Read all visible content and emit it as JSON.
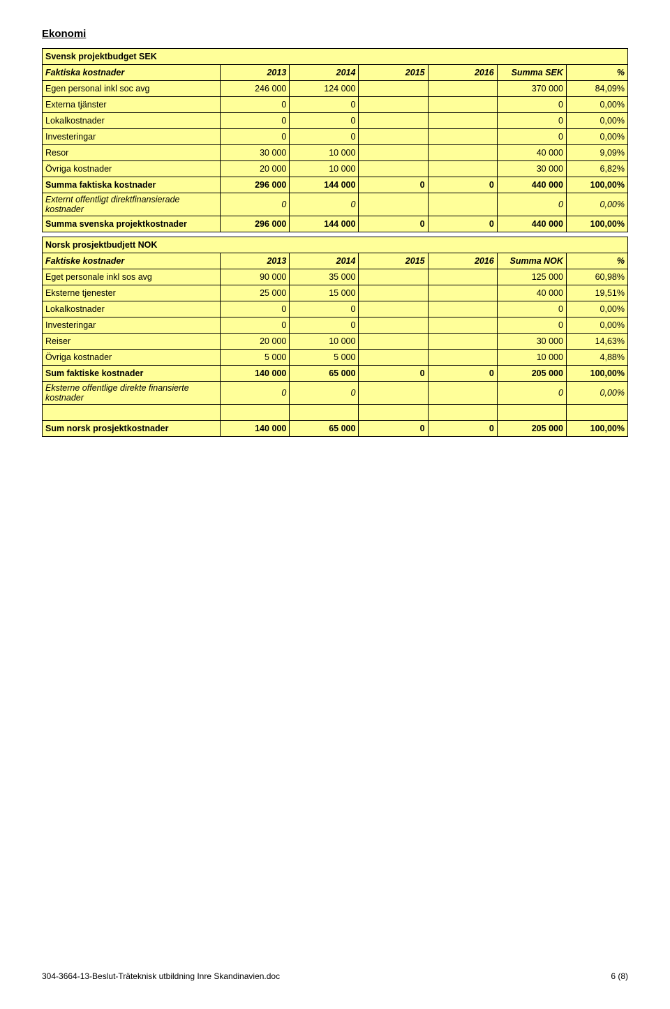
{
  "title": "Ekonomi",
  "table1": {
    "header_row": {
      "label": "Svensk projektbudget SEK"
    },
    "columns_row": {
      "label": "Faktiska kostnader",
      "c2013": "2013",
      "c2014": "2014",
      "c2015": "2015",
      "c2016": "2016",
      "sum": "Summa SEK",
      "pct": "%"
    },
    "rows": [
      {
        "label": "Egen personal inkl soc avg",
        "c2013": "246 000",
        "c2014": "124 000",
        "c2015": "",
        "c2016": "",
        "sum": "370 000",
        "pct": "84,09%",
        "bold": false,
        "italic": false
      },
      {
        "label": "Externa tjänster",
        "c2013": "0",
        "c2014": "0",
        "c2015": "",
        "c2016": "",
        "sum": "0",
        "pct": "0,00%",
        "bold": false,
        "italic": false
      },
      {
        "label": "Lokalkostnader",
        "c2013": "0",
        "c2014": "0",
        "c2015": "",
        "c2016": "",
        "sum": "0",
        "pct": "0,00%",
        "bold": false,
        "italic": false
      },
      {
        "label": "Investeringar",
        "c2013": "0",
        "c2014": "0",
        "c2015": "",
        "c2016": "",
        "sum": "0",
        "pct": "0,00%",
        "bold": false,
        "italic": false
      },
      {
        "label": "Resor",
        "c2013": "30 000",
        "c2014": "10 000",
        "c2015": "",
        "c2016": "",
        "sum": "40 000",
        "pct": "9,09%",
        "bold": false,
        "italic": false
      },
      {
        "label": "Övriga kostnader",
        "c2013": "20 000",
        "c2014": "10 000",
        "c2015": "",
        "c2016": "",
        "sum": "30 000",
        "pct": "6,82%",
        "bold": false,
        "italic": false
      },
      {
        "label": "Summa faktiska kostnader",
        "c2013": "296 000",
        "c2014": "144 000",
        "c2015": "0",
        "c2016": "0",
        "sum": "440 000",
        "pct": "100,00%",
        "bold": true,
        "italic": false
      },
      {
        "label": "Externt offentligt direktfinansierade kostnader",
        "c2013": "0",
        "c2014": "0",
        "c2015": "",
        "c2016": "",
        "sum": "0",
        "pct": "0,00%",
        "bold": false,
        "italic": true
      },
      {
        "label": "Summa svenska projektkostnader",
        "c2013": "296 000",
        "c2014": "144 000",
        "c2015": "0",
        "c2016": "0",
        "sum": "440 000",
        "pct": "100,00%",
        "bold": true,
        "italic": false
      }
    ]
  },
  "table2": {
    "header_row": {
      "label": "Norsk prosjektbudjett NOK"
    },
    "columns_row": {
      "label": "Faktiske kostnader",
      "c2013": "2013",
      "c2014": "2014",
      "c2015": "2015",
      "c2016": "2016",
      "sum": "Summa NOK",
      "pct": "%"
    },
    "rows": [
      {
        "label": "Eget personale inkl sos avg",
        "c2013": "90 000",
        "c2014": "35 000",
        "c2015": "",
        "c2016": "",
        "sum": "125 000",
        "pct": "60,98%",
        "bold": false,
        "italic": false
      },
      {
        "label": "Eksterne tjenester",
        "c2013": "25 000",
        "c2014": "15 000",
        "c2015": "",
        "c2016": "",
        "sum": "40 000",
        "pct": "19,51%",
        "bold": false,
        "italic": false
      },
      {
        "label": "Lokalkostnader",
        "c2013": "0",
        "c2014": "0",
        "c2015": "",
        "c2016": "",
        "sum": "0",
        "pct": "0,00%",
        "bold": false,
        "italic": false
      },
      {
        "label": "Investeringar",
        "c2013": "0",
        "c2014": "0",
        "c2015": "",
        "c2016": "",
        "sum": "0",
        "pct": "0,00%",
        "bold": false,
        "italic": false
      },
      {
        "label": "Reiser",
        "c2013": "20 000",
        "c2014": "10 000",
        "c2015": "",
        "c2016": "",
        "sum": "30 000",
        "pct": "14,63%",
        "bold": false,
        "italic": false
      },
      {
        "label": "Övriga kostnader",
        "c2013": "5 000",
        "c2014": "5 000",
        "c2015": "",
        "c2016": "",
        "sum": "10 000",
        "pct": "4,88%",
        "bold": false,
        "italic": false
      },
      {
        "label": "Sum faktiske kostnader",
        "c2013": "140 000",
        "c2014": "65 000",
        "c2015": "0",
        "c2016": "0",
        "sum": "205 000",
        "pct": "100,00%",
        "bold": true,
        "italic": false
      },
      {
        "label": "Eksterne offentlige direkte finansierte kostnader",
        "c2013": "0",
        "c2014": "0",
        "c2015": "",
        "c2016": "",
        "sum": "0",
        "pct": "0,00%",
        "bold": false,
        "italic": true
      }
    ],
    "spacer_after": true,
    "final_row": {
      "label": "Sum norsk prosjektkostnader",
      "c2013": "140 000",
      "c2014": "65 000",
      "c2015": "0",
      "c2016": "0",
      "sum": "205 000",
      "pct": "100,00%",
      "bold": true,
      "italic": false
    }
  },
  "footer": {
    "left": "304-3664-13-Beslut-Träteknisk utbildning Inre Skandinavien.doc",
    "right": "6 (8)"
  },
  "colors": {
    "highlight": "#ffff99",
    "border": "#000000",
    "bg": "#ffffff"
  }
}
